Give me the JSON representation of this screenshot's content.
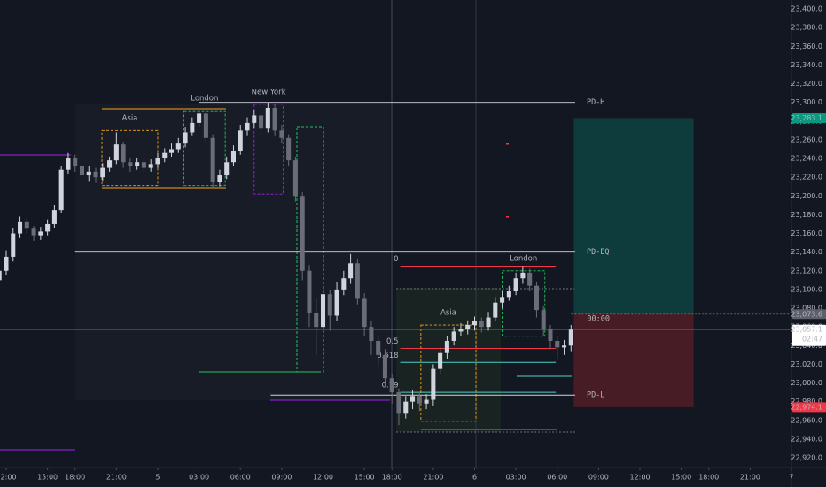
{
  "chart_data": {
    "type": "candlestick",
    "colors": {
      "up": "#d1d4dc",
      "down": "#6a6d78"
    },
    "xlim": [
      -0.45,
      57
    ],
    "ylim": [
      22909.6,
      23409.5
    ],
    "xticks": [
      {
        "value": 0,
        "label": "12:00"
      },
      {
        "value": 3,
        "label": "15:00"
      },
      {
        "value": 5,
        "label": "18:00"
      },
      {
        "value": 8,
        "label": "21:00"
      },
      {
        "value": 11,
        "label": "5"
      },
      {
        "value": 14,
        "label": "03:00"
      },
      {
        "value": 17,
        "label": "06:00"
      },
      {
        "value": 20,
        "label": "09:00"
      },
      {
        "value": 23,
        "label": "12:00"
      },
      {
        "value": 26,
        "label": "15:00"
      },
      {
        "value": 28,
        "label": "18:00"
      },
      {
        "value": 31,
        "label": "21:00"
      },
      {
        "value": 34,
        "label": "6"
      },
      {
        "value": 37,
        "label": "03:00"
      },
      {
        "value": 40,
        "label": "06:00"
      },
      {
        "value": 43,
        "label": "09:00"
      },
      {
        "value": 46,
        "label": "12:00"
      },
      {
        "value": 49,
        "label": "15:00"
      },
      {
        "value": 51,
        "label": "18:00"
      },
      {
        "value": 54,
        "label": "21:00"
      },
      {
        "value": 57,
        "label": "7"
      }
    ],
    "yticks": [
      {
        "value": 22920,
        "label": "22,920.0"
      },
      {
        "value": 22940,
        "label": "22,940.0"
      },
      {
        "value": 22960,
        "label": "22,960.0"
      },
      {
        "value": 22980,
        "label": "22,980.0"
      },
      {
        "value": 23000,
        "label": "23,000.0"
      },
      {
        "value": 23020,
        "label": "23,020.0"
      },
      {
        "value": 23040,
        "label": "23,040.0"
      },
      {
        "value": 23060,
        "label": "23,060.0"
      },
      {
        "value": 23080,
        "label": "23,080.0"
      },
      {
        "value": 23100,
        "label": "23,100.0"
      },
      {
        "value": 23120,
        "label": "23,120.0"
      },
      {
        "value": 23140,
        "label": "23,140.0"
      },
      {
        "value": 23160,
        "label": "23,160.0"
      },
      {
        "value": 23180,
        "label": "23,180.0"
      },
      {
        "value": 23200,
        "label": "23,200.0"
      },
      {
        "value": 23220,
        "label": "23,220.0"
      },
      {
        "value": 23240,
        "label": "23,240.0"
      },
      {
        "value": 23260,
        "label": "23,260.0"
      },
      {
        "value": 23280,
        "label": "23,280.0"
      },
      {
        "value": 23300,
        "label": "23,300.0"
      },
      {
        "value": 23320,
        "label": "23,320.0"
      },
      {
        "value": 23340,
        "label": "23,340.0"
      },
      {
        "value": 23360,
        "label": "23,360.0"
      },
      {
        "value": 23380,
        "label": "23,380.0"
      },
      {
        "value": 23400,
        "label": "23,400.0"
      }
    ],
    "x": [
      -0.5,
      0,
      0.5,
      1,
      1.5,
      2,
      2.5,
      3,
      3.5,
      4,
      4.5,
      5,
      5.5,
      6,
      6.5,
      7,
      7.5,
      8,
      8.5,
      9,
      9.5,
      10,
      10.5,
      11,
      11.5,
      12,
      12.5,
      13,
      13.5,
      14,
      14.5,
      15,
      15.5,
      16,
      16.5,
      17,
      17.5,
      18,
      18.5,
      19,
      19.5,
      20,
      20.5,
      21,
      21.5,
      22,
      22.5,
      23,
      23.5,
      24,
      24.5,
      25,
      25.5,
      26,
      26.5,
      27,
      27.5,
      28,
      28.5,
      29,
      29.5,
      30,
      30.5,
      31,
      31.5,
      32,
      32.5,
      33,
      33.5,
      34,
      34.5,
      35,
      35.5,
      36,
      36.5,
      37,
      37.5,
      38,
      38.5,
      39,
      39.5,
      40,
      40.5,
      41
    ],
    "open": [
      23110,
      23120,
      23135,
      23160,
      23172,
      23165,
      23158,
      23162,
      23170,
      23185,
      23228,
      23240,
      23232,
      23222,
      23226,
      23220,
      23230,
      23238,
      23255,
      23236,
      23232,
      23236,
      23230,
      23234,
      23240,
      23246,
      23250,
      23256,
      23268,
      23278,
      23288,
      23262,
      23215,
      23222,
      23236,
      23248,
      23270,
      23278,
      23286,
      23272,
      23294,
      23270,
      23262,
      23238,
      23200,
      23120,
      23075,
      23060,
      23095,
      23072,
      23100,
      23112,
      23128,
      23090,
      23060,
      23045,
      23030,
      23005,
      22990,
      22968,
      22980,
      22986,
      22978,
      22982,
      23015,
      23032,
      23045,
      23055,
      23058,
      23062,
      23066,
      23060,
      23070,
      23086,
      23092,
      23098,
      23112,
      23118,
      23104,
      23078,
      23058,
      23045,
      23038,
      23040
    ],
    "high": [
      23128,
      23142,
      23166,
      23178,
      23176,
      23168,
      23167,
      23175,
      23190,
      23232,
      23246,
      23244,
      23236,
      23232,
      23230,
      23235,
      23242,
      23268,
      23258,
      23240,
      23241,
      23240,
      23239,
      23246,
      23251,
      23256,
      23262,
      23274,
      23284,
      23292,
      23290,
      23266,
      23228,
      23242,
      23254,
      23276,
      23284,
      23292,
      23290,
      23300,
      23298,
      23276,
      23266,
      23242,
      23204,
      23126,
      23090,
      23104,
      23100,
      23108,
      23120,
      23138,
      23132,
      23096,
      23066,
      23050,
      23036,
      23010,
      22994,
      22986,
      22992,
      22990,
      22988,
      23020,
      23038,
      23050,
      23060,
      23064,
      23067,
      23071,
      23070,
      23076,
      23092,
      23098,
      23104,
      23118,
      23125,
      23122,
      23108,
      23082,
      23062,
      23050,
      23046,
      23062
    ],
    "low": [
      23100,
      23115,
      23130,
      23155,
      23160,
      23152,
      23153,
      23158,
      23166,
      23182,
      23224,
      23226,
      23218,
      23216,
      23214,
      23216,
      23226,
      23234,
      23230,
      23226,
      23228,
      23224,
      23226,
      23230,
      23236,
      23242,
      23246,
      23252,
      23264,
      23274,
      23256,
      23208,
      23210,
      23218,
      23232,
      23244,
      23264,
      23272,
      23266,
      23268,
      23264,
      23256,
      23232,
      23194,
      23110,
      23060,
      23030,
      23052,
      23056,
      23066,
      23094,
      23106,
      23084,
      23050,
      23030,
      23018,
      22996,
      22978,
      22955,
      22962,
      22972,
      22970,
      22972,
      22976,
      23010,
      23026,
      23040,
      23050,
      23052,
      23056,
      23054,
      23056,
      23066,
      23080,
      23088,
      23094,
      23106,
      23098,
      23070,
      23050,
      23036,
      23026,
      23030,
      23034
    ],
    "close": [
      23120,
      23135,
      23160,
      23172,
      23165,
      23158,
      23162,
      23170,
      23185,
      23228,
      23240,
      23232,
      23222,
      23226,
      23220,
      23230,
      23238,
      23255,
      23236,
      23232,
      23236,
      23230,
      23234,
      23240,
      23246,
      23250,
      23256,
      23268,
      23278,
      23288,
      23262,
      23215,
      23222,
      23236,
      23248,
      23270,
      23278,
      23286,
      23272,
      23294,
      23270,
      23262,
      23238,
      23200,
      23120,
      23075,
      23060,
      23095,
      23072,
      23100,
      23112,
      23128,
      23090,
      23060,
      23045,
      23030,
      23005,
      22990,
      22968,
      22980,
      22986,
      22978,
      22982,
      23015,
      23032,
      23045,
      23055,
      23058,
      23062,
      23066,
      23060,
      23070,
      23086,
      23092,
      23098,
      23112,
      23118,
      23104,
      23078,
      23058,
      23045,
      23038,
      23040,
      23057
    ],
    "sessions": [
      {
        "name": "Asia",
        "color": "#f7a21b",
        "x": [
          6.95,
          11.0
        ],
        "price": [
          23211,
          23270
        ]
      },
      {
        "name": "London",
        "color": "#22c55e",
        "x": [
          12.9,
          15.9
        ],
        "price": [
          23211,
          23291
        ]
      },
      {
        "name": "New York",
        "color": "#a020f0",
        "x": [
          18.0,
          20.1
        ],
        "price": [
          23202,
          23298
        ]
      },
      {
        "name": "Asia",
        "color": "#f7a21b",
        "x": [
          30.1,
          34.1
        ],
        "price": [
          22959,
          23062
        ]
      },
      {
        "name": "London",
        "color": "#22c55e",
        "x": [
          36.0,
          39.1
        ],
        "price": [
          23050,
          23120
        ]
      }
    ],
    "levels": [
      {
        "name": "PD-H",
        "value": 23300,
        "x": [
          14.0,
          41.3
        ]
      },
      {
        "name": "PD-EQ",
        "value": 23140,
        "x": [
          5.0,
          41.3
        ]
      },
      {
        "name": "PD-L",
        "value": 22987,
        "x": [
          19.2,
          41.3
        ]
      }
    ],
    "fib": {
      "x": [
        28.6,
        39.9
      ],
      "levels": [
        {
          "label": "0",
          "value": 23125,
          "color": "#f23645"
        },
        {
          "label": "0.5",
          "value": 23037,
          "color": "#f23645"
        },
        {
          "label": "0.618",
          "value": 23022,
          "color": "#4dd0c8"
        },
        {
          "label": "0.79",
          "value": 22990,
          "color": "#4dd0c8"
        }
      ]
    },
    "position": {
      "x": [
        41.2,
        49.9
      ],
      "entry_label": "00:00"
    },
    "price_labels": [
      {
        "value": 23283.1,
        "label": "23,283.1",
        "color": "#089981"
      },
      {
        "value": 23073.6,
        "label": "23,073.6",
        "color": "#5d606b"
      },
      {
        "value": 23057.1,
        "label": "23,057.1",
        "color": "#ffffff"
      },
      {
        "value": 22974.1,
        "label": "22,974.1",
        "color": "#f23645"
      }
    ],
    "countdown": "02:47"
  }
}
